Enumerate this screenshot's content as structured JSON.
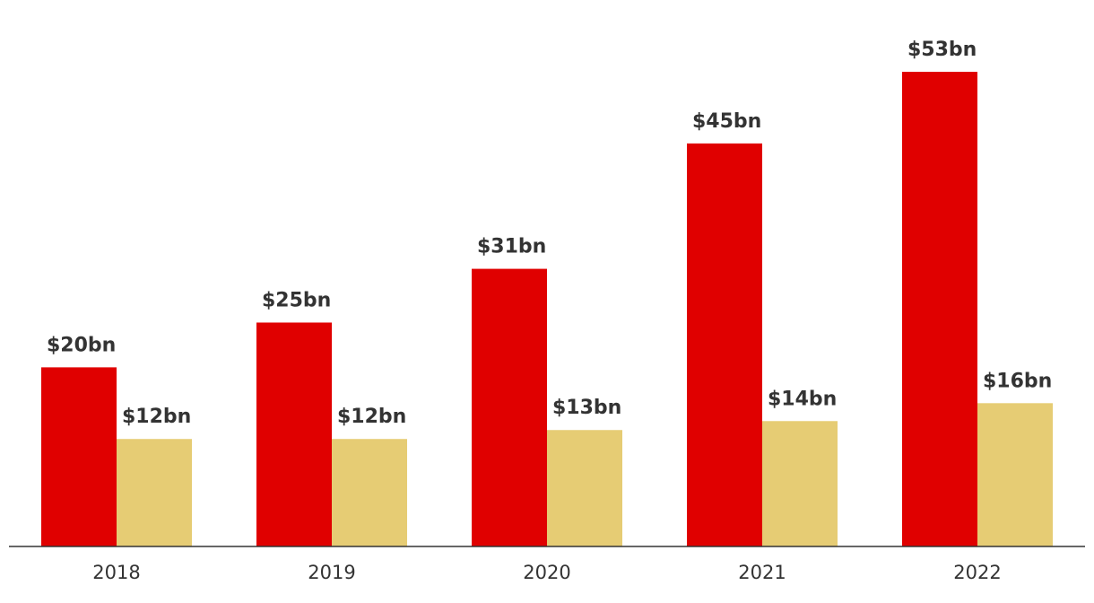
{
  "chart_data": {
    "type": "bar",
    "categories": [
      "2018",
      "2019",
      "2020",
      "2021",
      "2022"
    ],
    "series": [
      {
        "values": [
          20,
          25,
          31,
          45,
          53
        ],
        "labels": [
          "$20bn",
          "$25bn",
          "$31bn",
          "$45bn",
          "$53bn"
        ],
        "color": "#e00000"
      },
      {
        "values": [
          12,
          12,
          13,
          14,
          16
        ],
        "labels": [
          "$12bn",
          "$12bn",
          "$13bn",
          "$14bn",
          "$16bn"
        ],
        "color": "#e6cc74"
      }
    ],
    "ylim": [
      0,
      53
    ],
    "grid": false,
    "axis_color": "#333333",
    "text_color": "#333333"
  }
}
